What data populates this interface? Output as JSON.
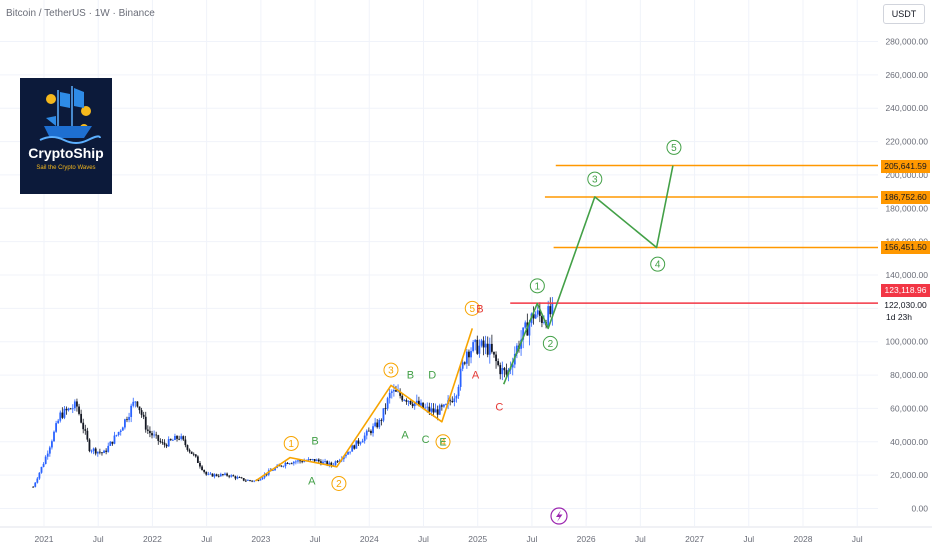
{
  "header": {
    "title": "Bitcoin / TetherUS · 1W · Binance",
    "currency": "USDT"
  },
  "logo": {
    "name": "CryptoShip",
    "tagline": "Sail the Crypto Waves"
  },
  "price_tags": {
    "level1": "205,641.59",
    "level2": "186,752.60",
    "level3": "156,451.50",
    "last_price": "123,118.96",
    "prev_close": "122,030.00",
    "countdown": "1d 23h"
  },
  "colors": {
    "accent_orange": "#ff9800",
    "projection_green": "#4caf50",
    "resistance_red": "#f23645",
    "wave_red": "#e53935",
    "candle_up": "#2962ff",
    "candle_down": "#131722"
  },
  "chart_data": {
    "type": "line",
    "title": "Bitcoin / TetherUS · 1W · Binance",
    "y_unit": "USDT",
    "ylim": [
      -5000,
      295000
    ],
    "y_ticks": [
      0,
      20000,
      40000,
      60000,
      80000,
      100000,
      120000,
      140000,
      160000,
      180000,
      200000,
      220000,
      240000,
      260000,
      280000
    ],
    "y_tick_labels": [
      "0.00",
      "20,000.00",
      "40,000.00",
      "60,000.00",
      "80,000.00",
      "100,000.00",
      "120,000.00",
      "140,000.00",
      "160,000.00",
      "180,000.00",
      "200,000.00",
      "220,000.00",
      "240,000.00",
      "260,000.00",
      "280,000.00"
    ],
    "xlim": [
      2020.9,
      2029.0
    ],
    "x_ticks": [
      2021.0,
      2021.5,
      2022.0,
      2022.5,
      2023.0,
      2023.5,
      2024.0,
      2024.5,
      2025.0,
      2025.5,
      2026.0,
      2026.5,
      2027.0,
      2027.5,
      2028.0,
      2028.5
    ],
    "x_tick_labels": [
      "2021",
      "Jul",
      "2022",
      "Jul",
      "2023",
      "Jul",
      "2024",
      "Jul",
      "2025",
      "Jul",
      "2026",
      "Jul",
      "2027",
      "Jul",
      "2028",
      "Jul"
    ],
    "price_path": [
      {
        "x": 2020.9,
        "y": 13000
      },
      {
        "x": 2021.0,
        "y": 28000
      },
      {
        "x": 2021.15,
        "y": 56000
      },
      {
        "x": 2021.3,
        "y": 62000
      },
      {
        "x": 2021.42,
        "y": 36000
      },
      {
        "x": 2021.55,
        "y": 33000
      },
      {
        "x": 2021.7,
        "y": 47000
      },
      {
        "x": 2021.85,
        "y": 66000
      },
      {
        "x": 2021.95,
        "y": 47000
      },
      {
        "x": 2022.1,
        "y": 38000
      },
      {
        "x": 2022.25,
        "y": 43000
      },
      {
        "x": 2022.4,
        "y": 30000
      },
      {
        "x": 2022.5,
        "y": 20000
      },
      {
        "x": 2022.7,
        "y": 20000
      },
      {
        "x": 2022.85,
        "y": 17000
      },
      {
        "x": 2022.95,
        "y": 16500
      },
      {
        "x": 2023.1,
        "y": 23000
      },
      {
        "x": 2023.25,
        "y": 28000
      },
      {
        "x": 2023.5,
        "y": 29000
      },
      {
        "x": 2023.65,
        "y": 26000
      },
      {
        "x": 2023.8,
        "y": 34000
      },
      {
        "x": 2023.95,
        "y": 43000
      },
      {
        "x": 2024.1,
        "y": 52000
      },
      {
        "x": 2024.2,
        "y": 70000
      },
      {
        "x": 2024.35,
        "y": 66000
      },
      {
        "x": 2024.5,
        "y": 60000
      },
      {
        "x": 2024.6,
        "y": 58000
      },
      {
        "x": 2024.7,
        "y": 60000
      },
      {
        "x": 2024.8,
        "y": 70000
      },
      {
        "x": 2024.9,
        "y": 95000
      },
      {
        "x": 2025.0,
        "y": 97000
      },
      {
        "x": 2025.1,
        "y": 96000
      },
      {
        "x": 2025.2,
        "y": 84000
      },
      {
        "x": 2025.27,
        "y": 80000
      },
      {
        "x": 2025.35,
        "y": 95000
      },
      {
        "x": 2025.45,
        "y": 108000
      },
      {
        "x": 2025.52,
        "y": 117000
      },
      {
        "x": 2025.6,
        "y": 114000
      },
      {
        "x": 2025.7,
        "y": 118000
      }
    ],
    "series": [
      {
        "color": "#f7a400",
        "points": [
          {
            "x": 2022.95,
            "y": 16500
          },
          {
            "x": 2023.27,
            "y": 30500
          },
          {
            "x": 2023.7,
            "y": 25000
          },
          {
            "x": 2024.2,
            "y": 73800
          },
          {
            "x": 2024.67,
            "y": 52000
          },
          {
            "x": 2024.95,
            "y": 108000
          }
        ]
      },
      {
        "color": "#43a047",
        "points": [
          {
            "x": 2025.24,
            "y": 74500
          },
          {
            "x": 2025.55,
            "y": 123000
          },
          {
            "x": 2025.65,
            "y": 108000
          },
          {
            "x": 2026.08,
            "y": 186800
          },
          {
            "x": 2026.65,
            "y": 156500
          },
          {
            "x": 2026.8,
            "y": 205600
          }
        ]
      }
    ],
    "horizontal_lines": [
      {
        "y": 205641.59,
        "color": "#ff9800",
        "x_start": 2025.72
      },
      {
        "y": 186752.6,
        "color": "#ff9800",
        "x_start": 2025.62
      },
      {
        "y": 156451.5,
        "color": "#ff9800",
        "x_start": 2025.7
      },
      {
        "y": 123118.96,
        "color": "#f23645",
        "x_start": 2025.3
      }
    ],
    "annotations": [
      {
        "text": "1",
        "x": 2023.28,
        "y": 39000,
        "color": "#f7a400",
        "circled": true
      },
      {
        "text": "2",
        "x": 2023.72,
        "y": 15000,
        "color": "#f7a400",
        "circled": true
      },
      {
        "text": "3",
        "x": 2024.2,
        "y": 83000,
        "color": "#f7a400",
        "circled": true
      },
      {
        "text": "4",
        "x": 2024.68,
        "y": 40000,
        "color": "#f7a400",
        "circled": true
      },
      {
        "text": "5",
        "x": 2024.95,
        "y": 120000,
        "color": "#f7a400",
        "circled": true
      },
      {
        "text": "1",
        "x": 2025.55,
        "y": 133500,
        "color": "#43a047",
        "circled": true
      },
      {
        "text": "2",
        "x": 2025.67,
        "y": 99000,
        "color": "#43a047",
        "circled": true
      },
      {
        "text": "3",
        "x": 2026.08,
        "y": 197500,
        "color": "#43a047",
        "circled": true
      },
      {
        "text": "4",
        "x": 2026.66,
        "y": 146500,
        "color": "#43a047",
        "circled": true
      },
      {
        "text": "5",
        "x": 2026.81,
        "y": 216500,
        "color": "#43a047",
        "circled": true
      },
      {
        "text": "B",
        "x": 2023.5,
        "y": 40500,
        "color": "#43a047",
        "circled": false
      },
      {
        "text": "A",
        "x": 2023.47,
        "y": 16500,
        "color": "#43a047",
        "circled": false
      },
      {
        "text": "B",
        "x": 2024.38,
        "y": 80000,
        "color": "#43a047",
        "circled": false
      },
      {
        "text": "D",
        "x": 2024.58,
        "y": 80000,
        "color": "#43a047",
        "circled": false
      },
      {
        "text": "A",
        "x": 2024.33,
        "y": 44000,
        "color": "#43a047",
        "circled": false
      },
      {
        "text": "C",
        "x": 2024.52,
        "y": 41500,
        "color": "#43a047",
        "circled": false
      },
      {
        "text": "E",
        "x": 2024.68,
        "y": 40000,
        "color": "#43a047",
        "circled": false
      },
      {
        "text": "B",
        "x": 2025.02,
        "y": 119500,
        "color": "#e53935",
        "circled": false
      },
      {
        "text": "A",
        "x": 2024.98,
        "y": 80000,
        "color": "#e53935",
        "circled": false
      },
      {
        "text": "C",
        "x": 2025.2,
        "y": 61000,
        "color": "#e53935",
        "circled": false
      }
    ]
  }
}
